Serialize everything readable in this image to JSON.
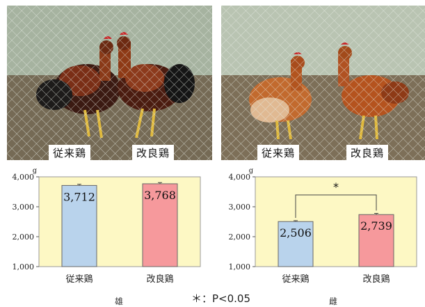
{
  "photos": [
    {
      "labels": [
        "従来鶏",
        "改良鶏"
      ]
    },
    {
      "labels": [
        "従来鶏",
        "改良鶏"
      ]
    }
  ],
  "chart_data": [
    {
      "type": "bar",
      "unit": "g",
      "categories": [
        "従来鶏",
        "改良鶏"
      ],
      "values": [
        3712,
        3768
      ],
      "value_labels": [
        "3,712",
        "3,768"
      ],
      "bar_colors": [
        "#b9d3ec",
        "#f6999c"
      ],
      "ylim": [
        1000,
        4000
      ],
      "yticks": [
        1000,
        2000,
        3000,
        4000
      ],
      "ytick_labels": [
        "1,000",
        "2,000",
        "3,000",
        "4,000"
      ],
      "error": [
        40,
        40
      ],
      "background": "#fdf8c4",
      "grid": false,
      "sex_label": "雄",
      "significance": null
    },
    {
      "type": "bar",
      "unit": "g",
      "categories": [
        "従来鶏",
        "改良鶏"
      ],
      "values": [
        2506,
        2739
      ],
      "value_labels": [
        "2,506",
        "2,739"
      ],
      "bar_colors": [
        "#b9d3ec",
        "#f6999c"
      ],
      "ylim": [
        1000,
        4000
      ],
      "yticks": [
        1000,
        2000,
        3000,
        4000
      ],
      "ytick_labels": [
        "1,000",
        "2,000",
        "3,000",
        "4,000"
      ],
      "error": [
        30,
        40
      ],
      "background": "#fdf8c4",
      "grid": false,
      "sex_label": "雌",
      "significance": "*"
    }
  ],
  "footnote": "＊：P<0.05"
}
